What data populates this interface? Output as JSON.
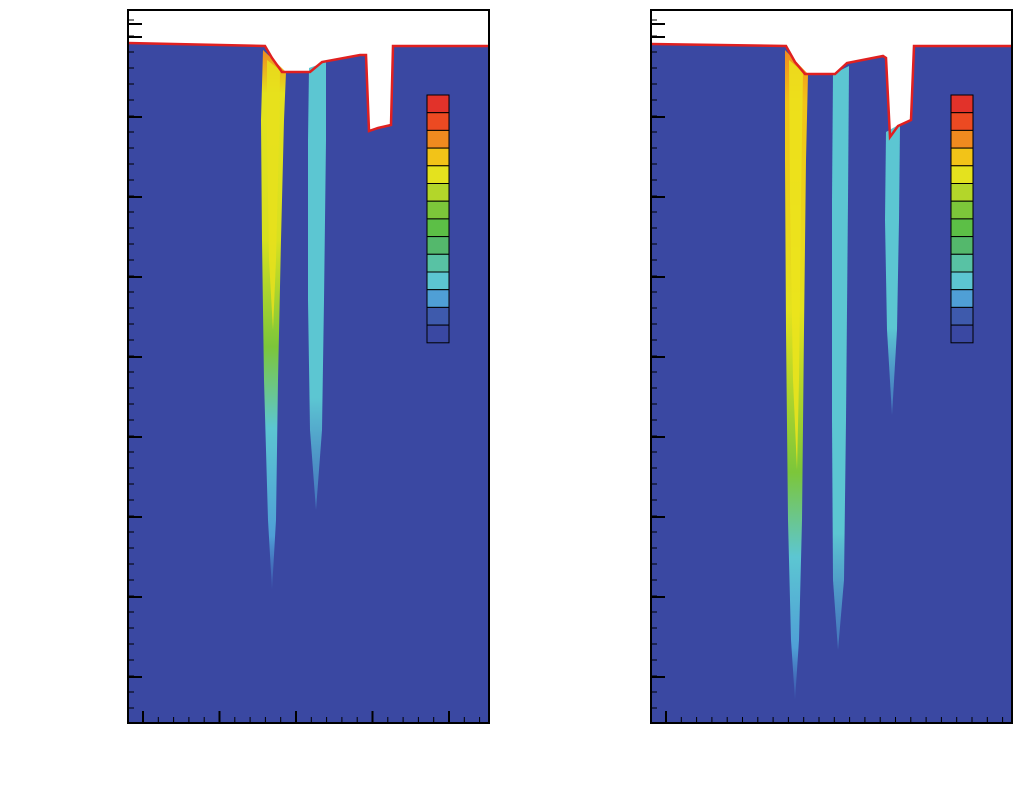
{
  "figure": {
    "panels": [
      {
        "id": "left",
        "legend": {
          "levels": 14,
          "colors": [
            "#e2322a",
            "#ec4a22",
            "#f08a1f",
            "#f2c318",
            "#e4e21e",
            "#b3d62a",
            "#7cc63a",
            "#5cbf46",
            "#54b86c",
            "#58c2a4",
            "#5cc6d2",
            "#4f9fd6",
            "#3e5aac",
            "#3a48a2"
          ]
        }
      },
      {
        "id": "right",
        "legend": {
          "levels": 14,
          "colors": [
            "#e2322a",
            "#ec4a22",
            "#f08a1f",
            "#f2c318",
            "#e4e21e",
            "#b3d62a",
            "#7cc63a",
            "#5cbf46",
            "#54b86c",
            "#58c2a4",
            "#5cc6d2",
            "#4f9fd6",
            "#3e5aac",
            "#3a48a2"
          ]
        }
      }
    ],
    "colors": {
      "background_field": "#3a4aa6",
      "surface_line": "#e02020",
      "frame": "#000000"
    }
  }
}
